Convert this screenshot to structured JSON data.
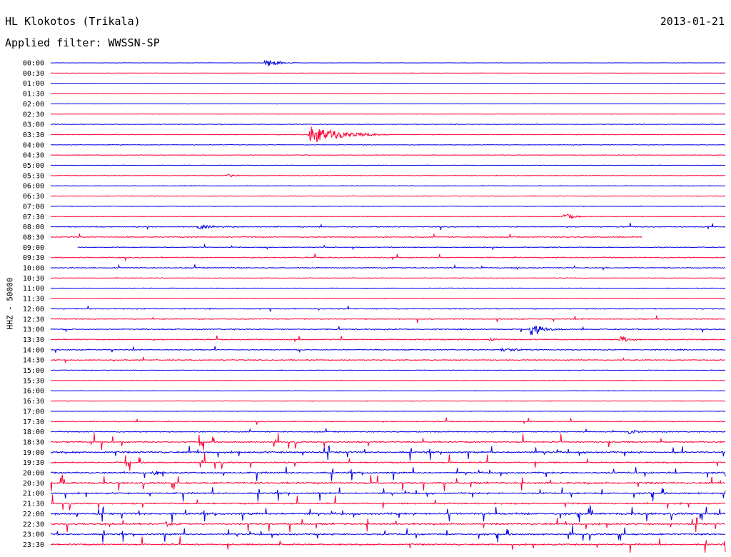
{
  "header": {
    "station": "HL Klokotos (Trikala)",
    "date": "2013-01-21",
    "filter": "Applied filter: WWSSN-SP"
  },
  "chart_data": {
    "type": "line",
    "title": "HL Klokotos (Trikala)",
    "subtitle": "Applied filter: WWSSN-SP",
    "ylabel": "HHZ - 50000",
    "xlabel": "",
    "grid": false,
    "colors": {
      "even_row": "#0000e6",
      "odd_row": "#ff0033"
    },
    "row_labels": [
      "00:00",
      "00:30",
      "01:00",
      "01:30",
      "02:00",
      "02:30",
      "03:00",
      "03:30",
      "04:00",
      "04:30",
      "05:00",
      "05:30",
      "06:00",
      "06:30",
      "07:00",
      "07:30",
      "08:00",
      "08:30",
      "09:00",
      "09:30",
      "10:00",
      "10:30",
      "11:00",
      "11:30",
      "12:00",
      "12:30",
      "13:00",
      "13:30",
      "14:00",
      "14:30",
      "15:00",
      "15:30",
      "16:00",
      "16:30",
      "17:00",
      "17:30",
      "18:00",
      "18:30",
      "19:00",
      "19:30",
      "20:00",
      "20:30",
      "21:00",
      "21:30",
      "22:00",
      "22:30",
      "23:00",
      "23:30"
    ],
    "row_duration_min": 30,
    "noise_level": [
      0.3,
      0.3,
      0.4,
      0.5,
      0.3,
      0.4,
      0.6,
      0.6,
      0.6,
      0.5,
      0.5,
      0.6,
      0.6,
      0.6,
      0.6,
      0.6,
      0.9,
      0.9,
      0.8,
      1.0,
      0.9,
      0.7,
      0.7,
      0.7,
      0.9,
      0.8,
      1.0,
      1.0,
      0.9,
      0.9,
      0.7,
      0.6,
      0.5,
      0.5,
      0.5,
      0.8,
      1.0,
      1.2,
      1.6,
      1.2,
      1.4,
      1.6,
      1.4,
      1.3,
      1.8,
      1.5,
      1.4,
      1.4
    ],
    "events": [
      {
        "row": "00:00",
        "minute": 9.5,
        "amplitude": 7,
        "duration_min": 1.5
      },
      {
        "row": "03:30",
        "minute": 11.5,
        "amplitude": 15,
        "duration_min": 3.5
      },
      {
        "row": "05:30",
        "minute": 7.8,
        "amplitude": 3,
        "duration_min": 1.0
      },
      {
        "row": "07:30",
        "minute": 22.8,
        "amplitude": 8,
        "duration_min": 1.0
      },
      {
        "row": "08:00",
        "minute": 6.5,
        "amplitude": 3,
        "duration_min": 2.5
      },
      {
        "row": "13:00",
        "minute": 21.3,
        "amplitude": 12,
        "duration_min": 1.5
      },
      {
        "row": "13:30",
        "minute": 19.5,
        "amplitude": 4,
        "duration_min": 0.5
      },
      {
        "row": "13:30",
        "minute": 25.3,
        "amplitude": 8,
        "duration_min": 0.8
      },
      {
        "row": "14:00",
        "minute": 20.0,
        "amplitude": 3,
        "duration_min": 2.5
      },
      {
        "row": "18:00",
        "minute": 25.7,
        "amplitude": 4,
        "duration_min": 1.0
      },
      {
        "row": "20:00",
        "minute": 4.5,
        "amplitude": 3,
        "duration_min": 1.2
      },
      {
        "row": "22:30",
        "minute": 5.0,
        "amplitude": 4,
        "duration_min": 1.5
      }
    ],
    "gaps": [
      {
        "row": "08:30",
        "start_min": 26.3,
        "end_min": 30
      },
      {
        "row": "09:00",
        "start_min": 0,
        "end_min": 1.2
      }
    ]
  }
}
